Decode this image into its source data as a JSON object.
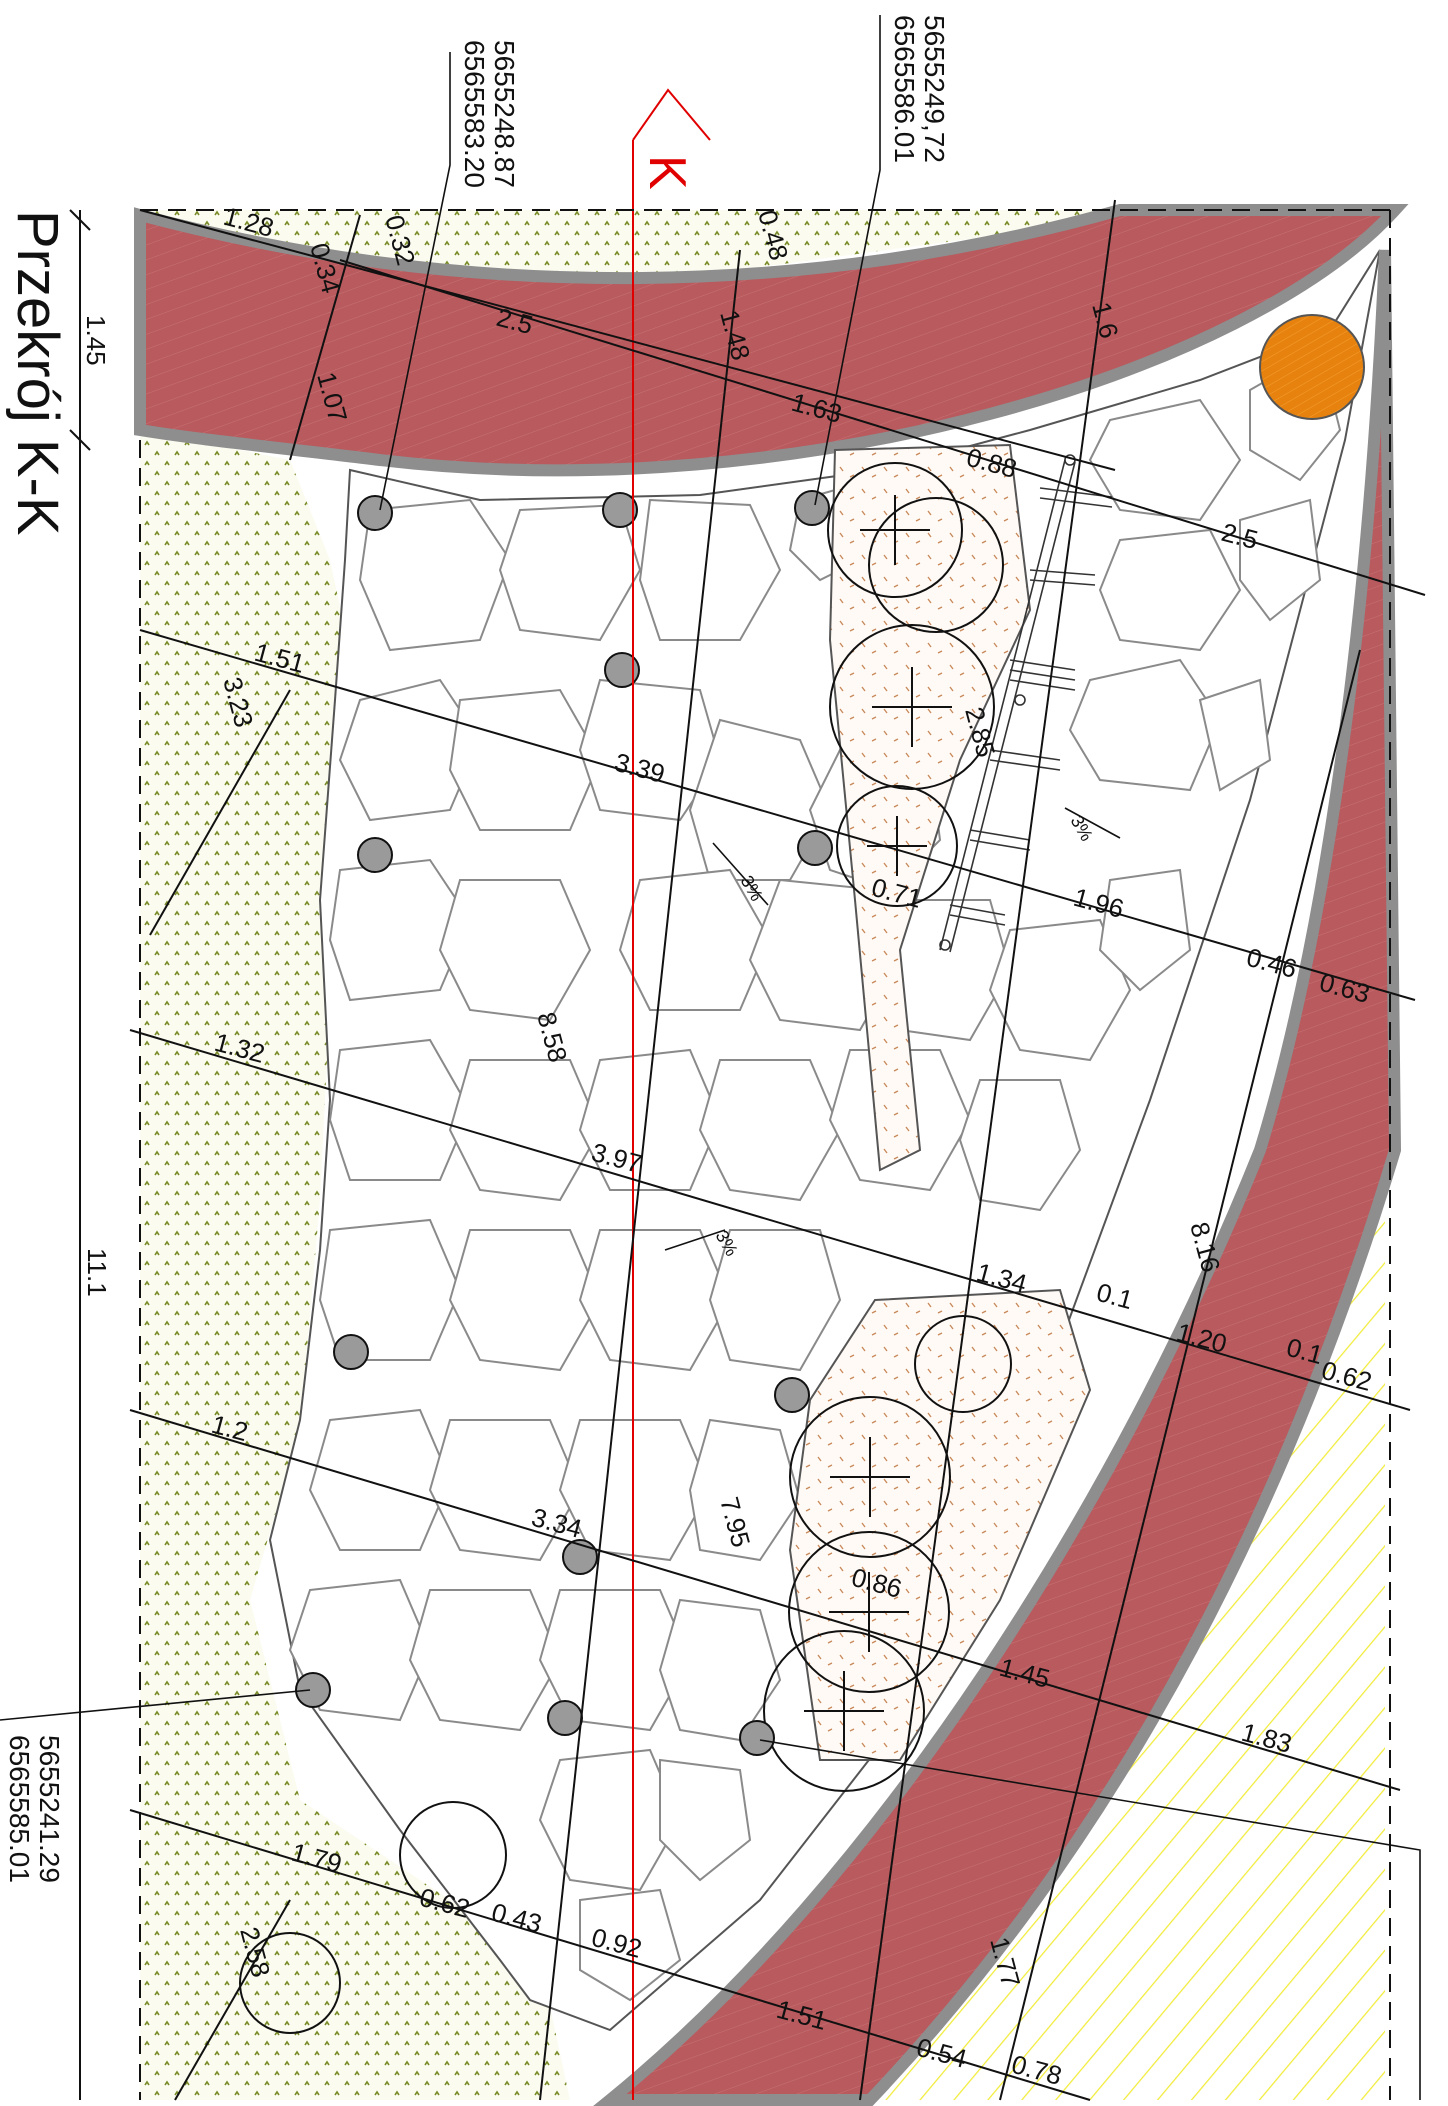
{
  "title": "Przekrój K-K",
  "section_marker": "K",
  "colors": {
    "red_path": "#b85a5e",
    "path_edge": "#8e8e8e",
    "grass_dots": "#7a8c2a",
    "hatch_yellow": "#f2ec3a",
    "orange_tree": "#e8820f",
    "section_line": "#e00000",
    "bollard_fill": "#9a9a9a",
    "planting_dots": "#c8885a"
  },
  "coordinates": [
    {
      "id": "c1",
      "line1": "5655248.87",
      "line2": "6565583.20"
    },
    {
      "id": "c2",
      "line1": "5655249,72",
      "line2": "6565586.01"
    },
    {
      "id": "c3",
      "line1": "5655241.29",
      "line2": "6565585.01"
    }
  ],
  "dimensions": [
    "1.28",
    "0.32",
    "0.34",
    "2.5",
    "0.48",
    "1.48",
    "1.6",
    "1.07",
    "1.63",
    "0.88",
    "2.5",
    "1.45",
    "1.51",
    "3.23",
    "3.39",
    "2.85",
    "0.71",
    "1.96",
    "0.46",
    "0.63",
    "8.58",
    "1.32",
    "3.97",
    "11.1",
    "8.16",
    "1.34",
    "0.1",
    "1.20",
    "0.1",
    "0.62",
    "1.2",
    "3.34",
    "7.95",
    "0.86",
    "1.45",
    "1.83",
    "1.79",
    "0.62",
    "0.43",
    "0.92",
    "2.58",
    "1.51",
    "1.77",
    "0.54",
    "0.78"
  ],
  "slopes": [
    "3%",
    "3%",
    "3%"
  ]
}
